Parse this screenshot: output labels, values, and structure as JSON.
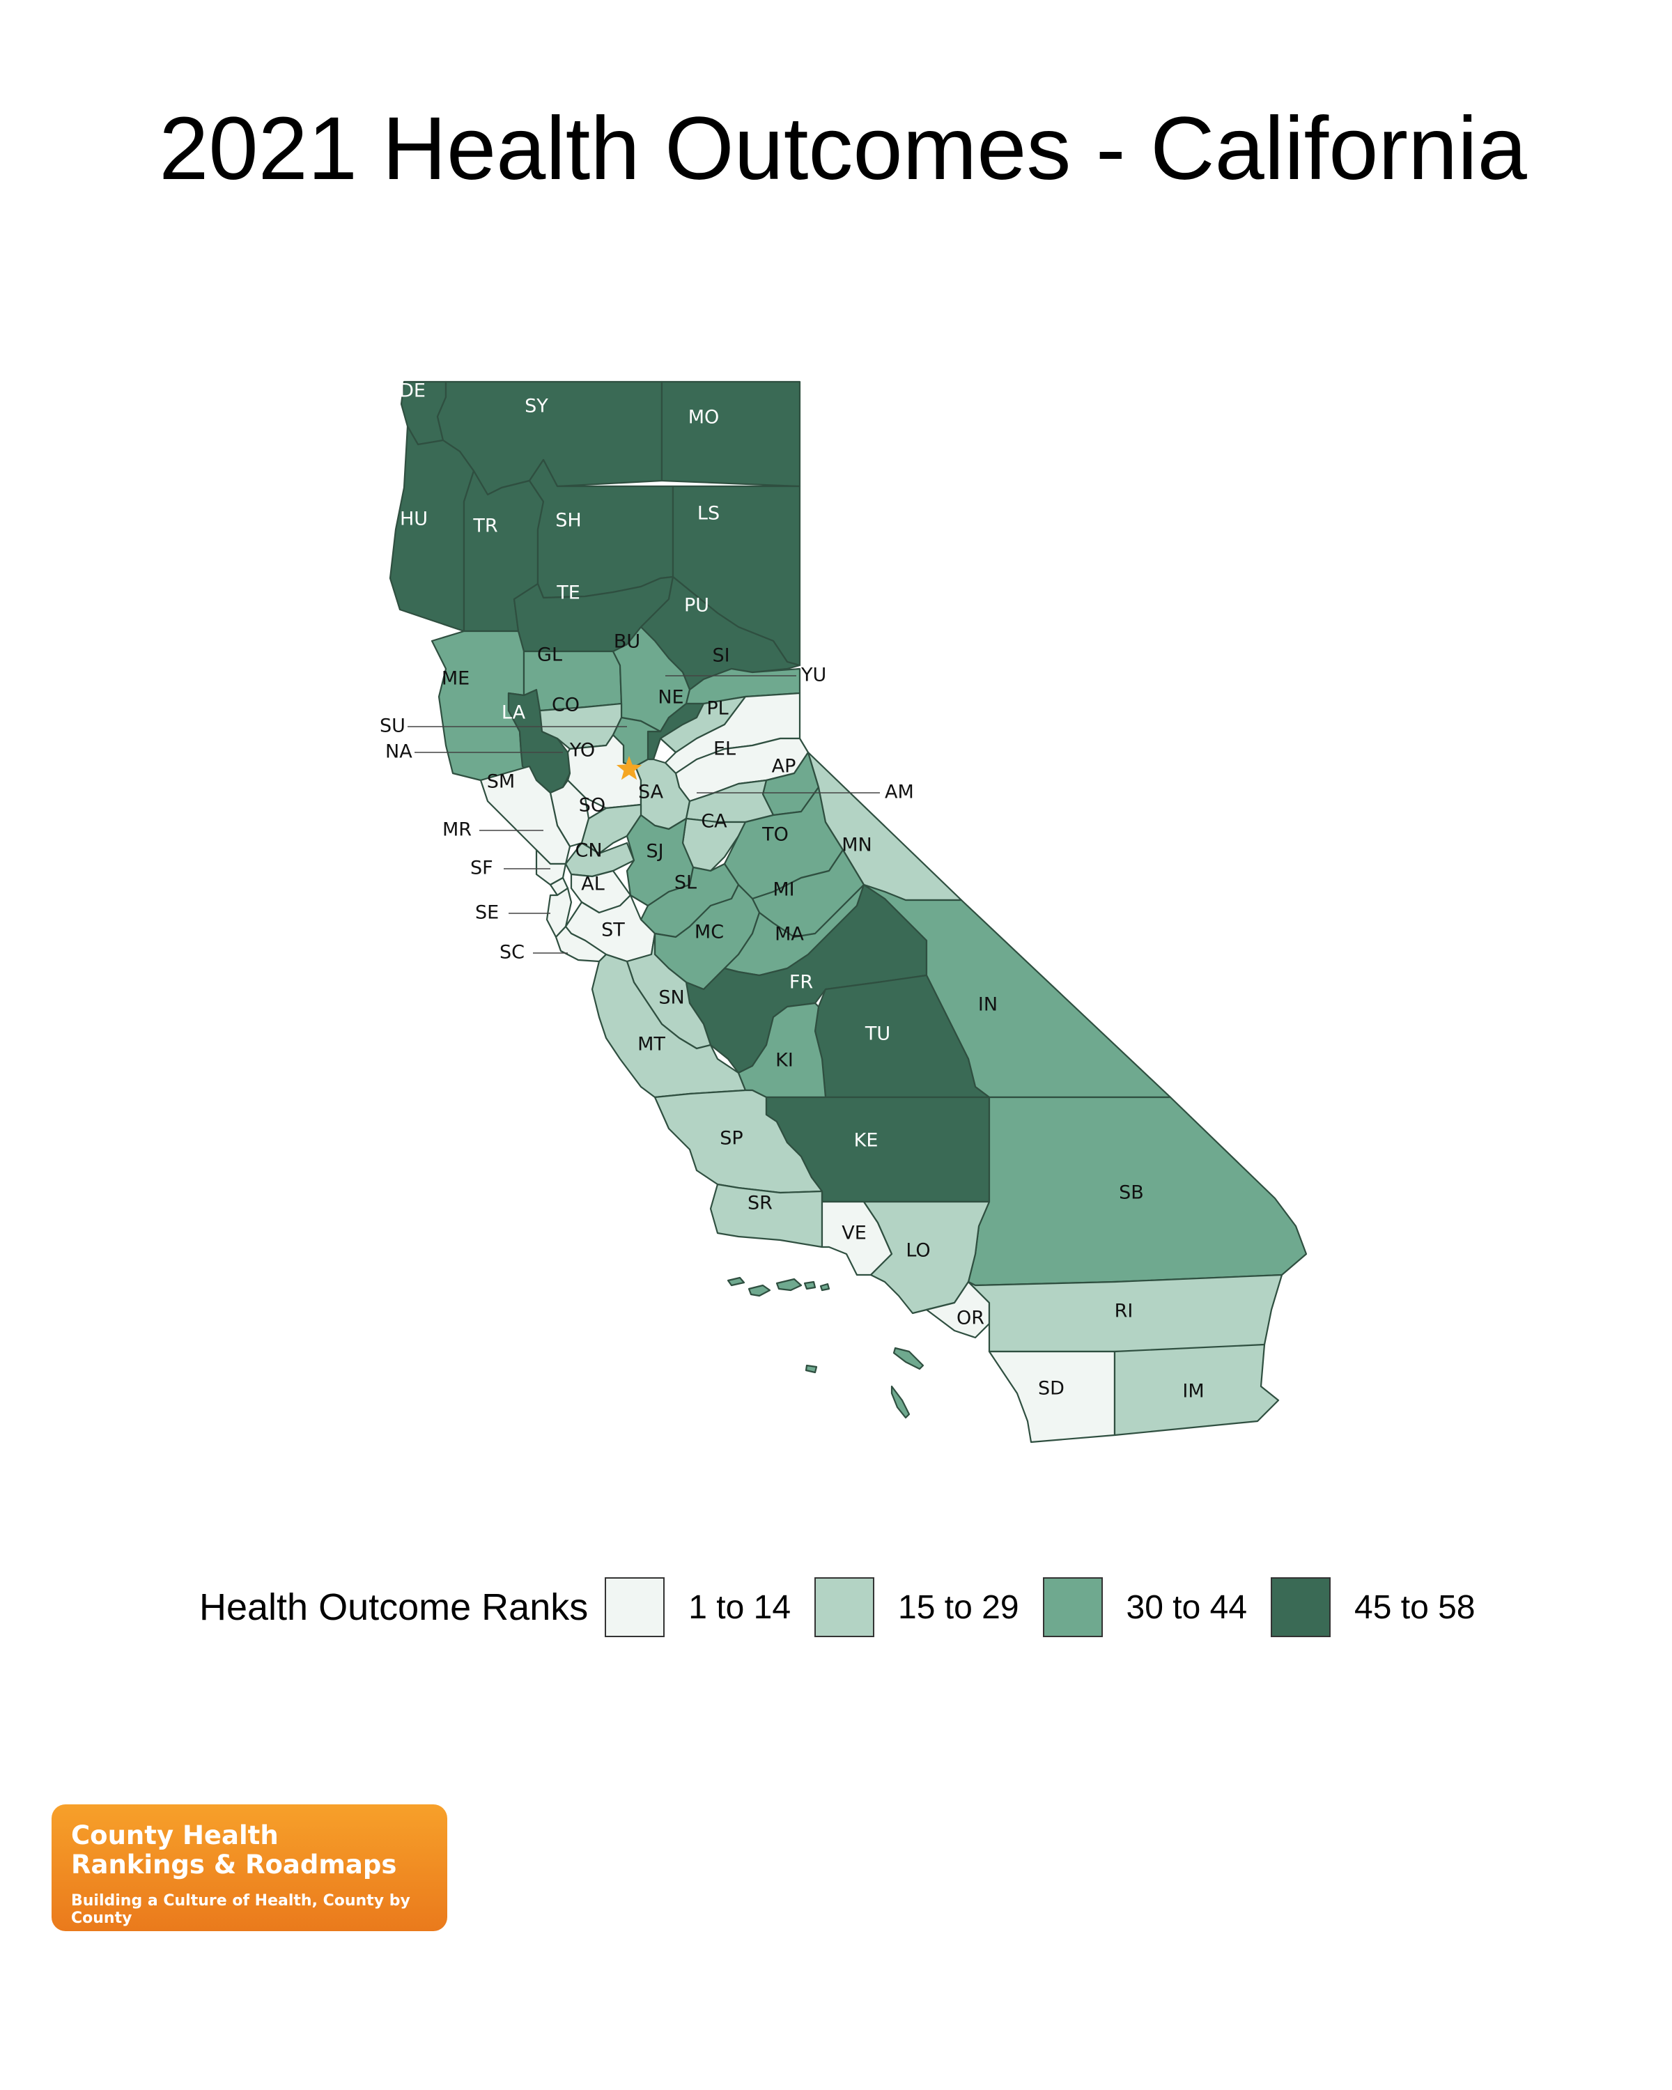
{
  "title": "2021 Health Outcomes - California",
  "legend": {
    "title": "Health Outcome Ranks",
    "bins": [
      {
        "label": "1 to 14",
        "color": "#f1f6f3"
      },
      {
        "label": "15 to 29",
        "color": "#b3d3c4"
      },
      {
        "label": "30 to 44",
        "color": "#6fa98f"
      },
      {
        "label": "45 to 58",
        "color": "#3a6a55"
      }
    ]
  },
  "state_capital_marker": {
    "icon": "star-icon",
    "color": "#f5a623"
  },
  "counties": [
    {
      "abbr": "DE",
      "bin": 3
    },
    {
      "abbr": "SY",
      "bin": 3
    },
    {
      "abbr": "MO",
      "bin": 3
    },
    {
      "abbr": "HU",
      "bin": 3
    },
    {
      "abbr": "TR",
      "bin": 3
    },
    {
      "abbr": "SH",
      "bin": 3
    },
    {
      "abbr": "LS",
      "bin": 3
    },
    {
      "abbr": "TE",
      "bin": 3
    },
    {
      "abbr": "PU",
      "bin": 3
    },
    {
      "abbr": "ME",
      "bin": 2
    },
    {
      "abbr": "GL",
      "bin": 2
    },
    {
      "abbr": "BU",
      "bin": 2
    },
    {
      "abbr": "SI",
      "bin": 2
    },
    {
      "abbr": "YU",
      "bin": 3
    },
    {
      "abbr": "LA",
      "bin": 3
    },
    {
      "abbr": "CO",
      "bin": 1
    },
    {
      "abbr": "NE",
      "bin": 1
    },
    {
      "abbr": "PL",
      "bin": 0
    },
    {
      "abbr": "SU",
      "bin": 2
    },
    {
      "abbr": "YO",
      "bin": 0
    },
    {
      "abbr": "NA",
      "bin": 0
    },
    {
      "abbr": "EL",
      "bin": 0
    },
    {
      "abbr": "SM",
      "bin": 0
    },
    {
      "abbr": "SA",
      "bin": 1
    },
    {
      "abbr": "AP",
      "bin": 2
    },
    {
      "abbr": "AM",
      "bin": 1
    },
    {
      "abbr": "SO",
      "bin": 1
    },
    {
      "abbr": "MR",
      "bin": 0
    },
    {
      "abbr": "CA",
      "bin": 1
    },
    {
      "abbr": "CN",
      "bin": 1
    },
    {
      "abbr": "SJ",
      "bin": 2
    },
    {
      "abbr": "TO",
      "bin": 2
    },
    {
      "abbr": "MN",
      "bin": 1
    },
    {
      "abbr": "SF",
      "bin": 0
    },
    {
      "abbr": "AL",
      "bin": 0
    },
    {
      "abbr": "SL",
      "bin": 2
    },
    {
      "abbr": "MI",
      "bin": 2
    },
    {
      "abbr": "SE",
      "bin": 0
    },
    {
      "abbr": "ST",
      "bin": 0
    },
    {
      "abbr": "MC",
      "bin": 2
    },
    {
      "abbr": "MA",
      "bin": 2
    },
    {
      "abbr": "SC",
      "bin": 0
    },
    {
      "abbr": "FR",
      "bin": 3
    },
    {
      "abbr": "IN",
      "bin": 2
    },
    {
      "abbr": "SN",
      "bin": 1
    },
    {
      "abbr": "TU",
      "bin": 3
    },
    {
      "abbr": "MT",
      "bin": 1
    },
    {
      "abbr": "KI",
      "bin": 2
    },
    {
      "abbr": "SP",
      "bin": 1
    },
    {
      "abbr": "KE",
      "bin": 3
    },
    {
      "abbr": "SB",
      "bin": 2
    },
    {
      "abbr": "SR",
      "bin": 1
    },
    {
      "abbr": "VE",
      "bin": 0
    },
    {
      "abbr": "LO",
      "bin": 1
    },
    {
      "abbr": "OR",
      "bin": 0
    },
    {
      "abbr": "RI",
      "bin": 1
    },
    {
      "abbr": "SD",
      "bin": 0
    },
    {
      "abbr": "IM",
      "bin": 1
    }
  ],
  "logo": {
    "line1": "County Health",
    "line2": "Rankings & Roadmaps",
    "tagline": "Building a Culture of Health, County by County"
  }
}
